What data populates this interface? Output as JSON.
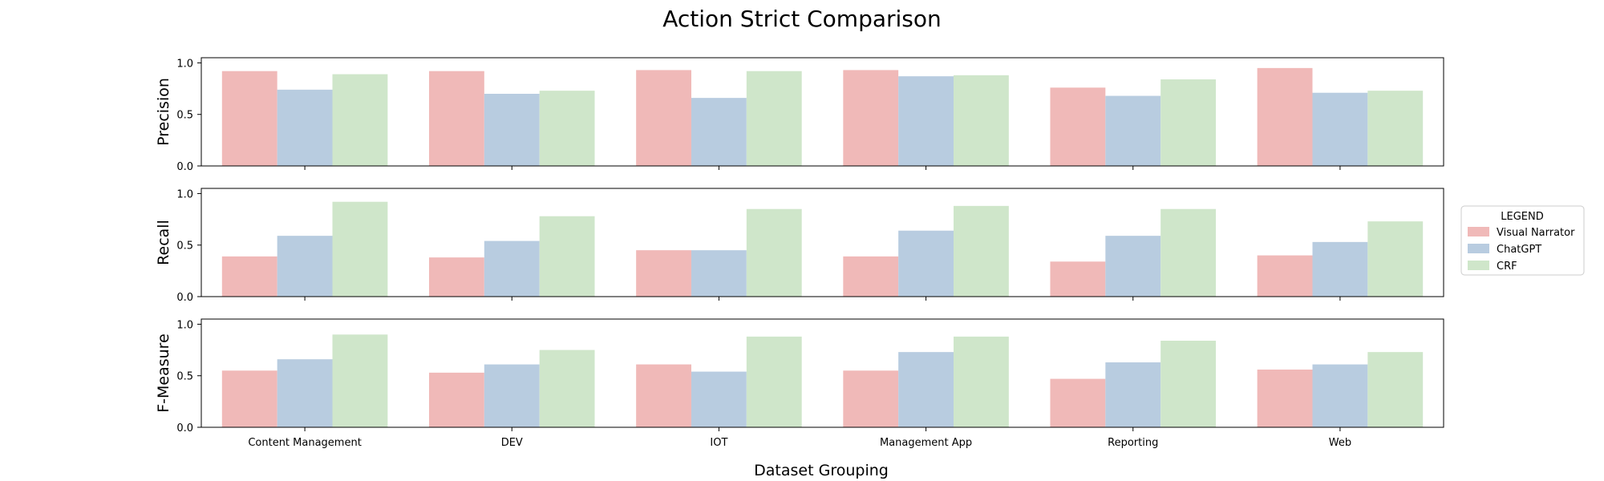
{
  "chart_data": {
    "type": "bar",
    "title": "Action Strict Comparison",
    "xlabel": "Dataset Grouping",
    "categories": [
      "Content Management",
      "DEV",
      "IOT",
      "Management App",
      "Reporting",
      "Web"
    ],
    "legend": {
      "title": "LEGEND",
      "placement": "right",
      "entries": [
        "Visual Narrator",
        "ChatGPT",
        "CRF"
      ]
    },
    "colors": {
      "Visual Narrator": "#f0b9b8",
      "ChatGPT": "#b8cce0",
      "CRF": "#cfe6ca"
    },
    "yticks": [
      "0.0",
      "0.5",
      "1.0"
    ],
    "ylim": [
      0,
      1.05
    ],
    "grid": false,
    "panels": [
      {
        "ylabel": "Precision",
        "series": [
          {
            "name": "Visual Narrator",
            "values": [
              0.92,
              0.92,
              0.93,
              0.93,
              0.76,
              0.95
            ]
          },
          {
            "name": "ChatGPT",
            "values": [
              0.74,
              0.7,
              0.66,
              0.87,
              0.68,
              0.71
            ]
          },
          {
            "name": "CRF",
            "values": [
              0.89,
              0.73,
              0.92,
              0.88,
              0.84,
              0.73
            ]
          }
        ]
      },
      {
        "ylabel": "Recall",
        "series": [
          {
            "name": "Visual Narrator",
            "values": [
              0.39,
              0.38,
              0.45,
              0.39,
              0.34,
              0.4
            ]
          },
          {
            "name": "ChatGPT",
            "values": [
              0.59,
              0.54,
              0.45,
              0.64,
              0.59,
              0.53
            ]
          },
          {
            "name": "CRF",
            "values": [
              0.92,
              0.78,
              0.85,
              0.88,
              0.85,
              0.73
            ]
          }
        ]
      },
      {
        "ylabel": "F-Measure",
        "series": [
          {
            "name": "Visual Narrator",
            "values": [
              0.55,
              0.53,
              0.61,
              0.55,
              0.47,
              0.56
            ]
          },
          {
            "name": "ChatGPT",
            "values": [
              0.66,
              0.61,
              0.54,
              0.73,
              0.63,
              0.61
            ]
          },
          {
            "name": "CRF",
            "values": [
              0.9,
              0.75,
              0.88,
              0.88,
              0.84,
              0.73
            ]
          }
        ]
      }
    ]
  }
}
